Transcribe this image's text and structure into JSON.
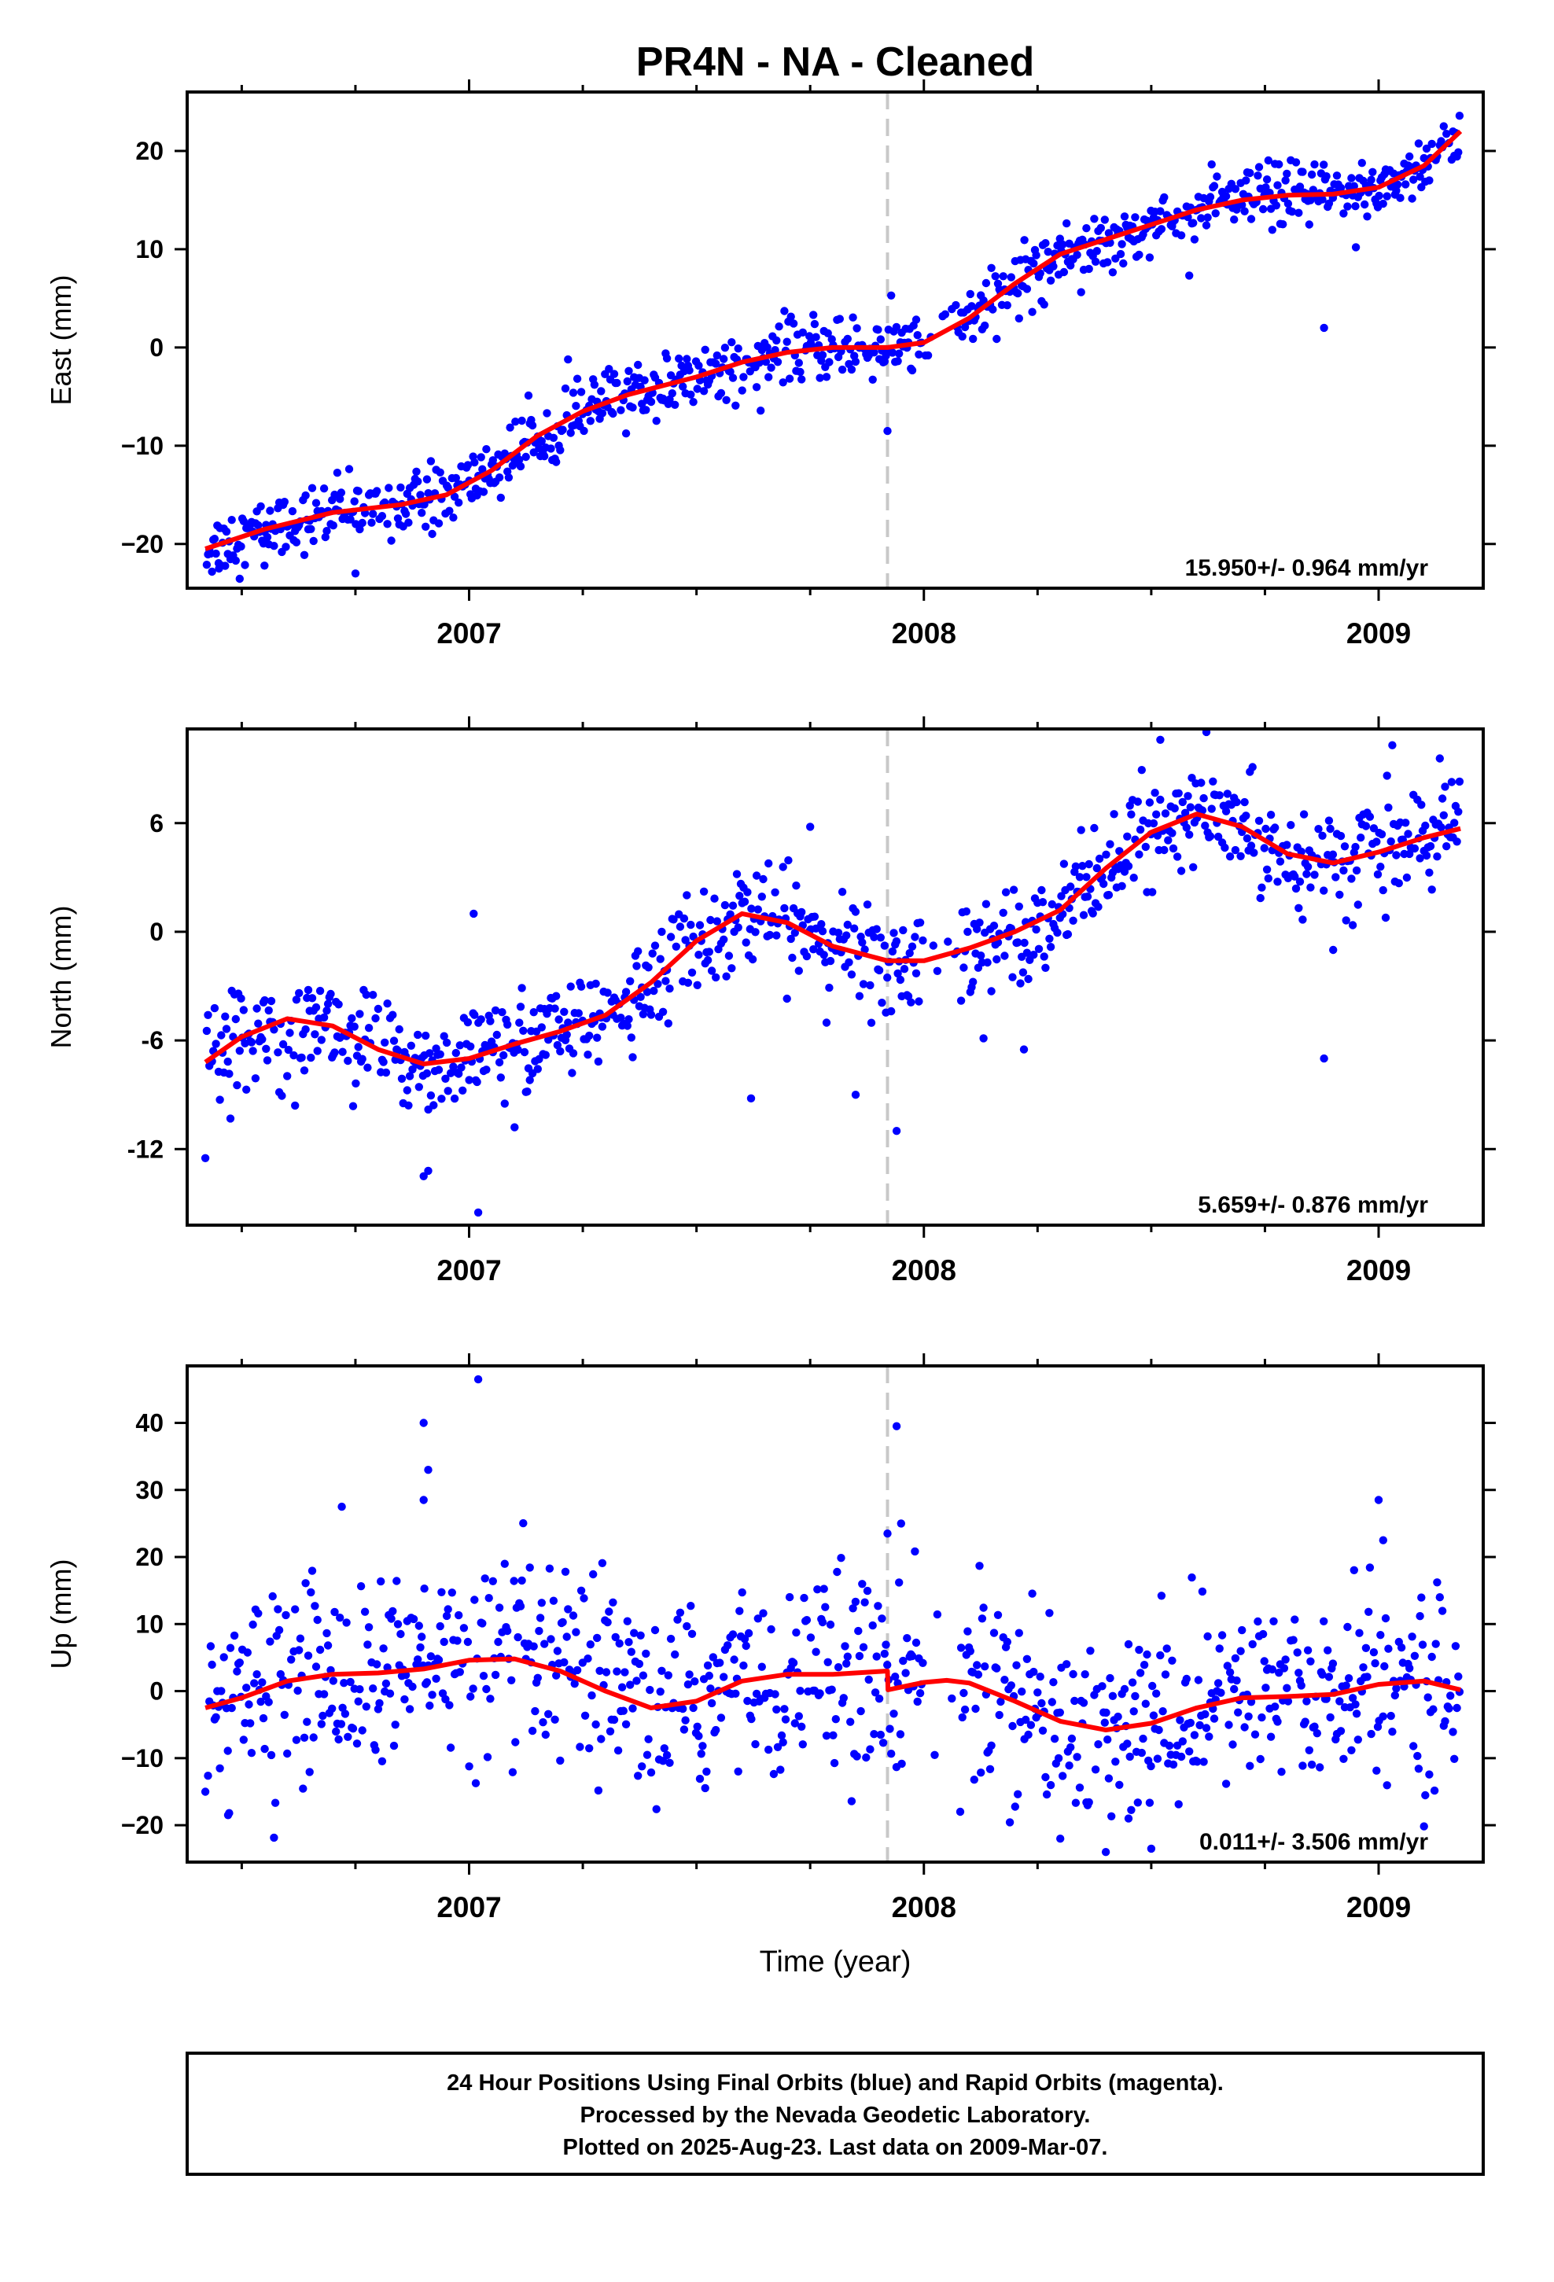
{
  "figure": {
    "title": "PR4N  - NA - Cleaned",
    "xlabel": "Time (year)",
    "caption_lines": [
      "24 Hour Positions Using Final Orbits (blue) and Rapid Orbits (magenta).",
      "Processed by the Nevada Geodetic Laboratory.",
      "Plotted on 2025-Aug-23. Last data on 2009-Mar-07."
    ],
    "colors": {
      "final_orbits": "#0000ff",
      "model_fit": "#ff0000",
      "event_line": "#c8c8c8"
    }
  },
  "chart_data": [
    {
      "type": "scatter",
      "ylabel": "East (mm)",
      "rate_label": "15.950+/- 0.964 mm/yr",
      "xlim": [
        2006.38,
        2009.23
      ],
      "ylim": [
        -24.5,
        26
      ],
      "x_ticks": [
        2007,
        2008,
        2009
      ],
      "x_tick_labels": [
        "2007",
        "2008",
        "2009"
      ],
      "y_ticks": [
        -20,
        -10,
        0,
        10,
        20
      ],
      "y_tick_labels": [
        "−20",
        "−10",
        "0",
        "10",
        "20"
      ],
      "event_x": 2007.92,
      "fit": [
        [
          2006.42,
          -20.5
        ],
        [
          2006.55,
          -18.5
        ],
        [
          2006.7,
          -16.8
        ],
        [
          2006.85,
          -16
        ],
        [
          2006.95,
          -15
        ],
        [
          2007.05,
          -12.5
        ],
        [
          2007.15,
          -9
        ],
        [
          2007.25,
          -6.5
        ],
        [
          2007.35,
          -4.8
        ],
        [
          2007.5,
          -3
        ],
        [
          2007.6,
          -1.5
        ],
        [
          2007.7,
          -0.5
        ],
        [
          2007.8,
          0
        ],
        [
          2007.92,
          0
        ],
        [
          2008.0,
          0.5
        ],
        [
          2008.1,
          3
        ],
        [
          2008.2,
          6.5
        ],
        [
          2008.3,
          9.5
        ],
        [
          2008.4,
          11
        ],
        [
          2008.5,
          12.5
        ],
        [
          2008.6,
          14
        ],
        [
          2008.7,
          15
        ],
        [
          2008.8,
          15.5
        ],
        [
          2008.9,
          15.6
        ],
        [
          2009.0,
          16.3
        ],
        [
          2009.1,
          18.5
        ],
        [
          2009.18,
          22
        ]
      ],
      "outliers": [
        [
          2006.75,
          -23
        ],
        [
          2007.92,
          -8.5
        ],
        [
          2008.88,
          2
        ],
        [
          2008.95,
          10.2
        ],
        [
          2006.45,
          -22.5
        ],
        [
          2006.55,
          -22.2
        ]
      ],
      "series": [
        {
          "noise": 1.6
        }
      ]
    },
    {
      "type": "scatter",
      "ylabel": "North (mm)",
      "rate_label": "5.659+/- 0.876 mm/yr",
      "xlim": [
        2006.38,
        2009.23
      ],
      "ylim": [
        -16.2,
        11.2
      ],
      "x_ticks": [
        2007,
        2008,
        2009
      ],
      "x_tick_labels": [
        "2007",
        "2008",
        "2009"
      ],
      "y_ticks": [
        -12,
        -6,
        0,
        6
      ],
      "y_tick_labels": [
        "-12",
        "-6",
        "0",
        "6"
      ],
      "event_x": 2007.92,
      "fit": [
        [
          2006.42,
          -7.2
        ],
        [
          2006.5,
          -5.8
        ],
        [
          2006.6,
          -4.8
        ],
        [
          2006.7,
          -5.2
        ],
        [
          2006.8,
          -6.5
        ],
        [
          2006.9,
          -7.3
        ],
        [
          2007.0,
          -7.0
        ],
        [
          2007.1,
          -6.2
        ],
        [
          2007.2,
          -5.5
        ],
        [
          2007.3,
          -4.6
        ],
        [
          2007.4,
          -2.8
        ],
        [
          2007.5,
          -0.5
        ],
        [
          2007.6,
          1.0
        ],
        [
          2007.7,
          0.5
        ],
        [
          2007.8,
          -0.8
        ],
        [
          2007.92,
          -1.6
        ],
        [
          2008.0,
          -1.6
        ],
        [
          2008.1,
          -0.9
        ],
        [
          2008.2,
          0.0
        ],
        [
          2008.3,
          1.2
        ],
        [
          2008.4,
          3.5
        ],
        [
          2008.5,
          5.5
        ],
        [
          2008.6,
          6.5
        ],
        [
          2008.7,
          5.8
        ],
        [
          2008.8,
          4.3
        ],
        [
          2008.9,
          3.8
        ],
        [
          2009.0,
          4.4
        ],
        [
          2009.1,
          5.2
        ],
        [
          2009.18,
          5.7
        ]
      ],
      "outliers": [
        [
          2006.42,
          -12.5
        ],
        [
          2006.9,
          -13.5
        ],
        [
          2006.91,
          -13.2
        ],
        [
          2007.02,
          -15.5
        ],
        [
          2007.01,
          1
        ],
        [
          2007.1,
          -10.8
        ],
        [
          2007.62,
          -9.2
        ],
        [
          2007.85,
          -9
        ],
        [
          2007.94,
          -11
        ],
        [
          2007.75,
          5.8
        ],
        [
          2008.22,
          -6.5
        ],
        [
          2008.88,
          -7
        ],
        [
          2008.9,
          -1
        ],
        [
          2009.03,
          10.3
        ],
        [
          2008.52,
          10.6
        ]
      ],
      "series": [
        {
          "noise": 1.4
        }
      ]
    },
    {
      "type": "scatter",
      "ylabel": "Up (mm)",
      "rate_label": "0.011+/- 3.506 mm/yr",
      "xlim": [
        2006.38,
        2009.23
      ],
      "ylim": [
        -25.5,
        48.5
      ],
      "x_ticks": [
        2007,
        2008,
        2009
      ],
      "x_tick_labels": [
        "2007",
        "2008",
        "2009"
      ],
      "y_ticks": [
        -20,
        -10,
        0,
        10,
        20,
        30,
        40
      ],
      "y_tick_labels": [
        "−20",
        "−10",
        "0",
        "10",
        "20",
        "30",
        "40"
      ],
      "event_x": 2007.92,
      "fit": [
        [
          2006.42,
          -2.5
        ],
        [
          2006.5,
          -1.0
        ],
        [
          2006.6,
          1.5
        ],
        [
          2006.7,
          2.5
        ],
        [
          2006.8,
          2.7
        ],
        [
          2006.9,
          3.3
        ],
        [
          2007.0,
          4.6
        ],
        [
          2007.1,
          4.8
        ],
        [
          2007.2,
          3.0
        ],
        [
          2007.3,
          0.0
        ],
        [
          2007.4,
          -2.5
        ],
        [
          2007.5,
          -1.5
        ],
        [
          2007.6,
          1.5
        ],
        [
          2007.7,
          2.5
        ],
        [
          2007.8,
          2.5
        ],
        [
          2007.92,
          3.0
        ],
        [
          2007.921,
          0.2
        ],
        [
          2008.0,
          1.3
        ],
        [
          2008.05,
          1.6
        ],
        [
          2008.1,
          1.2
        ],
        [
          2008.2,
          -1.5
        ],
        [
          2008.3,
          -4.5
        ],
        [
          2008.4,
          -5.8
        ],
        [
          2008.5,
          -4.8
        ],
        [
          2008.6,
          -2.5
        ],
        [
          2008.7,
          -1.0
        ],
        [
          2008.8,
          -0.8
        ],
        [
          2008.9,
          -0.5
        ],
        [
          2009.0,
          1.0
        ],
        [
          2009.1,
          1.5
        ],
        [
          2009.18,
          0.2
        ]
      ],
      "outliers": [
        [
          2006.9,
          40
        ],
        [
          2006.91,
          33
        ],
        [
          2006.9,
          28.5
        ],
        [
          2007.02,
          46.5
        ],
        [
          2006.72,
          27.5
        ],
        [
          2007.94,
          39.5
        ],
        [
          2007.95,
          25
        ],
        [
          2007.92,
          23.5
        ],
        [
          2009.0,
          28.5
        ],
        [
          2009.01,
          22.5
        ],
        [
          2008.3,
          -22
        ],
        [
          2008.4,
          -24
        ],
        [
          2008.45,
          -19
        ],
        [
          2008.5,
          -23.5
        ],
        [
          2006.47,
          -18.5
        ],
        [
          2006.42,
          -15
        ],
        [
          2008.08,
          -18
        ]
      ],
      "series": [
        {
          "noise": 7.2
        }
      ]
    }
  ]
}
